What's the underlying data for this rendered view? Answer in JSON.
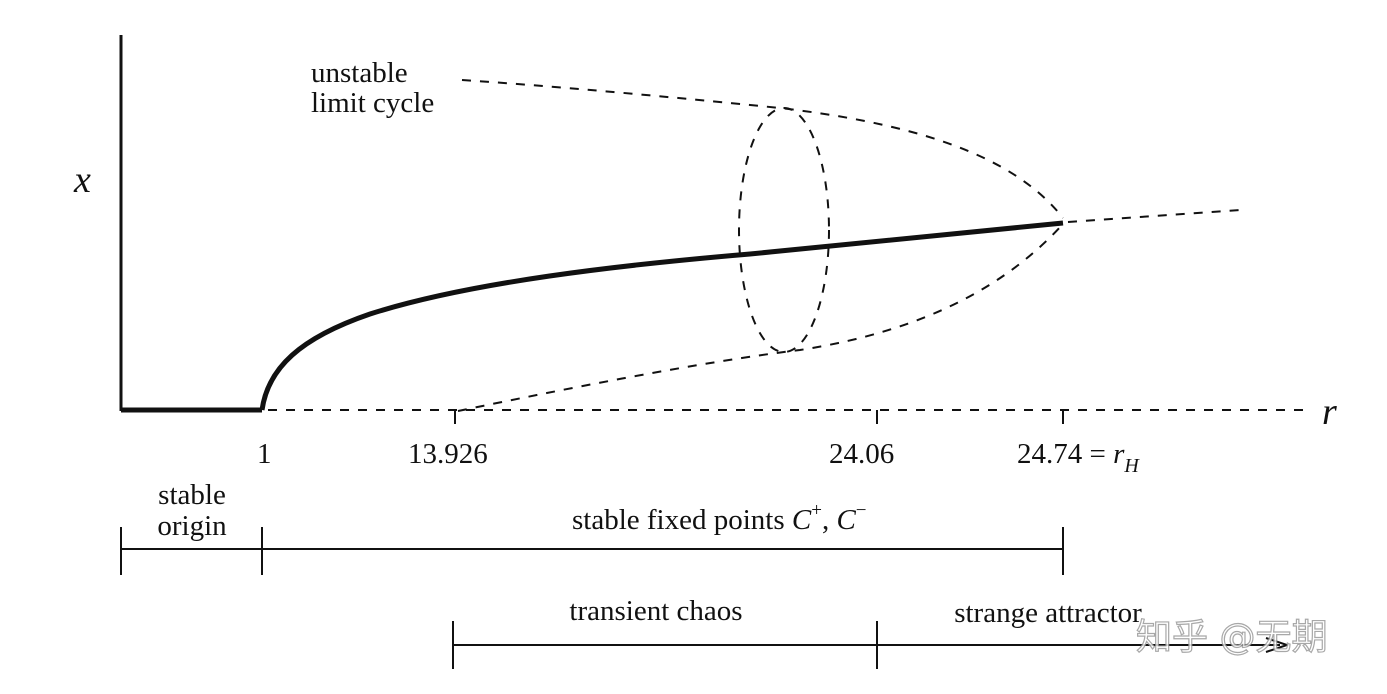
{
  "axes": {
    "y_label": "x",
    "x_label": "r"
  },
  "curve_labels": {
    "unstable_limit_cycle_line1": "unstable",
    "unstable_limit_cycle_line2": "limit cycle"
  },
  "ticks": [
    {
      "label": "1"
    },
    {
      "label": "13.926"
    },
    {
      "label": "24.06"
    },
    {
      "label": "24.74 = ",
      "symbol": "r",
      "subscript": "H"
    }
  ],
  "regimes": {
    "stable_origin": {
      "line1": "stable",
      "line2": "origin"
    },
    "stable_fixed_points": {
      "text": "stable fixed points ",
      "c": "C",
      "plus": "+",
      "sep": ", ",
      "minus": "−"
    },
    "transient_chaos": "transient chaos",
    "strange_attractor": "strange attractor"
  },
  "watermark": "知乎 @无期"
}
